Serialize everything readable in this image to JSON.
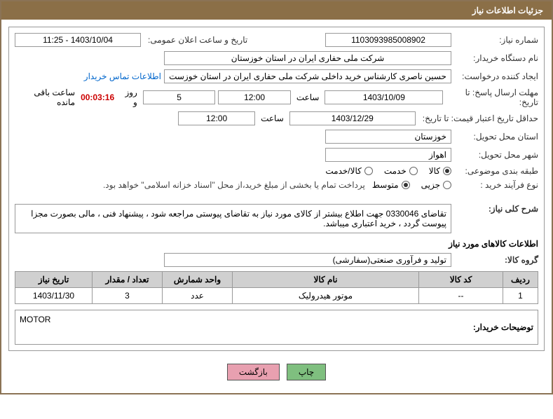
{
  "header": {
    "title": "جزئیات اطلاعات نیاز"
  },
  "fields": {
    "need_number_label": "شماره نیاز:",
    "need_number": "1103093985008902",
    "announce_label": "تاریخ و ساعت اعلان عمومی:",
    "announce_value": "1403/10/04 - 11:25",
    "buyer_org_label": "نام دستگاه خریدار:",
    "buyer_org": "شرکت ملی حفاری ایران در استان خوزستان",
    "requester_label": "ایجاد کننده درخواست:",
    "requester": "حسین ناصری کارشناس خرید داخلی شرکت ملی حفاری ایران در استان خوزست",
    "contact_link": "اطلاعات تماس خریدار",
    "deadline_label": "مهلت ارسال پاسخ: تا تاریخ:",
    "deadline_date": "1403/10/09",
    "time_label": "ساعت",
    "deadline_time": "12:00",
    "days_count": "5",
    "days_and": "روز و",
    "counter": "00:03:16",
    "remaining": "ساعت باقی مانده",
    "validity_label": "حداقل تاریخ اعتبار قیمت: تا تاریخ:",
    "validity_date": "1403/12/29",
    "validity_time": "12:00",
    "province_label": "استان محل تحویل:",
    "province": "خوزستان",
    "city_label": "شهر محل تحویل:",
    "city": "اهواز",
    "category_label": "طبقه بندی موضوعی:",
    "cat_goods": "کالا",
    "cat_service": "خدمت",
    "cat_both": "کالا/خدمت",
    "process_label": "نوع فرآیند خرید :",
    "proc_partial": "جزیی",
    "proc_medium": "متوسط",
    "payment_note": "پرداخت تمام یا بخشی از مبلغ خرید،از محل \"اسناد خزانه اسلامی\" خواهد بود.",
    "summary_label": "شرح کلی نیاز:",
    "summary_text": "تقاضای 0330046 جهت اطلاع بیشتر از کالای مورد نیاز به تقاضای پیوستی مراجعه شود ، پیشنهاد فنی ، مالی بصورت مجزا پیوست گردد ، خرید اعتباری میباشد.",
    "goods_info_title": "اطلاعات کالاهای مورد نیاز",
    "goods_group_label": "گروه کالا:",
    "goods_group": "تولید و فرآوری صنعتی(سفارشی)",
    "buyer_notes_label": "توضیحات خریدار:",
    "buyer_notes": "MOTOR"
  },
  "table": {
    "headers": {
      "row": "ردیف",
      "code": "کد کالا",
      "name": "نام کالا",
      "unit": "واحد شمارش",
      "qty": "تعداد / مقدار",
      "date": "تاریخ نیاز"
    },
    "rows": [
      {
        "row": "1",
        "code": "--",
        "name": "موتور هیدرولیک",
        "unit": "عدد",
        "qty": "3",
        "date": "1403/11/30"
      }
    ]
  },
  "buttons": {
    "print": "چاپ",
    "back": "بازگشت"
  },
  "colors": {
    "header_bg": "#8b6f47",
    "border": "#8b7355",
    "th_bg": "#d0d0d0",
    "btn_green": "#7fbf7f",
    "btn_pink": "#e8a0b0",
    "link": "#0066cc",
    "counter": "#c00"
  }
}
